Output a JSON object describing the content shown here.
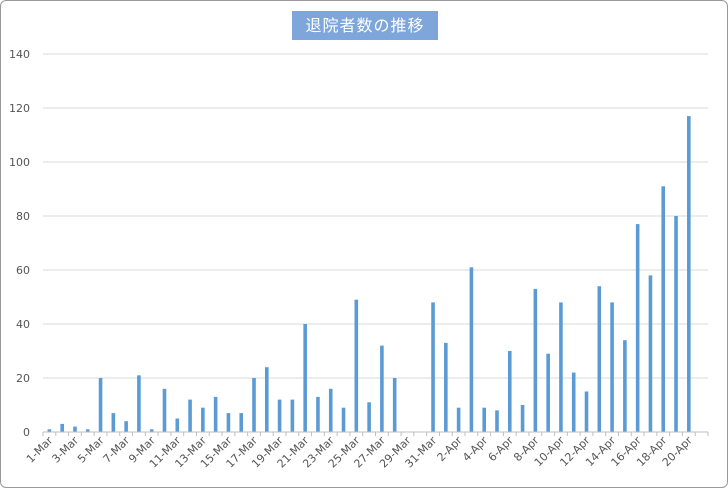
{
  "chart_data": {
    "type": "bar",
    "title": "退院者数の推移",
    "xlabel": "",
    "ylabel": "",
    "ylim": [
      0,
      140
    ],
    "yticks": [
      0,
      20,
      40,
      60,
      80,
      100,
      120,
      140
    ],
    "grid": true,
    "legend": "none",
    "bar_color": "#5b9bd5",
    "categories": [
      "1-Mar",
      "2-Mar",
      "3-Mar",
      "4-Mar",
      "5-Mar",
      "6-Mar",
      "7-Mar",
      "8-Mar",
      "9-Mar",
      "10-Mar",
      "11-Mar",
      "12-Mar",
      "13-Mar",
      "14-Mar",
      "15-Mar",
      "16-Mar",
      "17-Mar",
      "18-Mar",
      "19-Mar",
      "20-Mar",
      "21-Mar",
      "22-Mar",
      "23-Mar",
      "24-Mar",
      "25-Mar",
      "26-Mar",
      "27-Mar",
      "28-Mar",
      "29-Mar",
      "30-Mar",
      "31-Mar",
      "1-Apr",
      "2-Apr",
      "3-Apr",
      "4-Apr",
      "5-Apr",
      "6-Apr",
      "7-Apr",
      "8-Apr",
      "9-Apr",
      "10-Apr",
      "11-Apr",
      "12-Apr",
      "13-Apr",
      "14-Apr",
      "15-Apr",
      "16-Apr",
      "17-Apr",
      "18-Apr",
      "19-Apr",
      "20-Apr",
      "21-Apr"
    ],
    "tick_labels": [
      "1-Mar",
      "3-Mar",
      "5-Mar",
      "7-Mar",
      "9-Mar",
      "11-Mar",
      "13-Mar",
      "15-Mar",
      "17-Mar",
      "19-Mar",
      "21-Mar",
      "23-Mar",
      "25-Mar",
      "27-Mar",
      "29-Mar",
      "31-Mar",
      "2-Apr",
      "4-Apr",
      "6-Apr",
      "8-Apr",
      "10-Apr",
      "12-Apr",
      "14-Apr",
      "16-Apr",
      "18-Apr",
      "20-Apr"
    ],
    "values": [
      1,
      3,
      2,
      1,
      20,
      7,
      4,
      21,
      1,
      16,
      5,
      12,
      9,
      13,
      7,
      7,
      20,
      24,
      12,
      12,
      40,
      13,
      16,
      9,
      49,
      11,
      32,
      20,
      0,
      0,
      48,
      33,
      9,
      61,
      9,
      8,
      30,
      10,
      53,
      29,
      48,
      22,
      15,
      54,
      48,
      34,
      77,
      58,
      91,
      80,
      117,
      0
    ]
  }
}
